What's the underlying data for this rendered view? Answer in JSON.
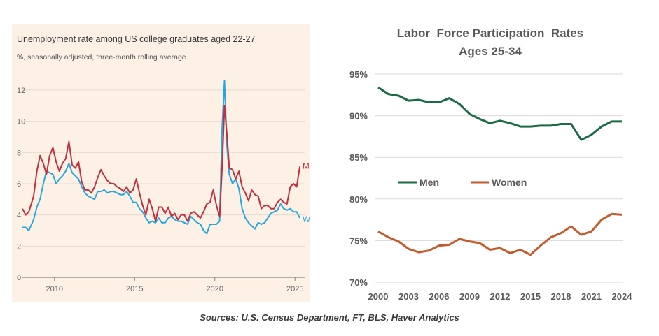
{
  "source": "Sources: U.S. Census Department, FT, BLS, Haver Analytics",
  "chart_data": [
    {
      "type": "line",
      "title": "Unemployment rate among US college graduates aged 22-27",
      "subtitle": "%, seasonally adjusted, three-month rolling average",
      "xlabel": "",
      "ylabel": "",
      "xlim": [
        2008.0,
        2025.6
      ],
      "ylim": [
        0,
        12.8
      ],
      "yticks": [
        0,
        2,
        4,
        6,
        8,
        10,
        12
      ],
      "xticks": [
        2010,
        2015,
        2020,
        2025
      ],
      "grid": true,
      "series": [
        {
          "name": "Men",
          "color": "#c0303f",
          "x": [
            2008.0,
            2008.2,
            2008.4,
            2008.7,
            2008.9,
            2009.1,
            2009.3,
            2009.5,
            2009.7,
            2009.9,
            2010.1,
            2010.3,
            2010.5,
            2010.7,
            2010.9,
            2011.1,
            2011.3,
            2011.5,
            2011.7,
            2011.9,
            2012.1,
            2012.3,
            2012.5,
            2012.7,
            2012.9,
            2013.1,
            2013.3,
            2013.5,
            2013.7,
            2013.9,
            2014.1,
            2014.3,
            2014.5,
            2014.7,
            2014.9,
            2015.1,
            2015.3,
            2015.5,
            2015.7,
            2015.9,
            2016.1,
            2016.3,
            2016.5,
            2016.7,
            2016.9,
            2017.1,
            2017.3,
            2017.5,
            2017.7,
            2017.9,
            2018.1,
            2018.3,
            2018.5,
            2018.7,
            2018.9,
            2019.1,
            2019.3,
            2019.5,
            2019.7,
            2019.9,
            2020.1,
            2020.3,
            2020.45,
            2020.6,
            2020.75,
            2020.9,
            2021.1,
            2021.3,
            2021.5,
            2021.7,
            2021.9,
            2022.1,
            2022.3,
            2022.5,
            2022.7,
            2022.9,
            2023.1,
            2023.3,
            2023.5,
            2023.7,
            2023.9,
            2024.1,
            2024.3,
            2024.5,
            2024.7,
            2024.9,
            2025.1,
            2025.3
          ],
          "values": [
            4.4,
            4.0,
            4.2,
            5.2,
            6.8,
            7.8,
            7.3,
            6.6,
            7.8,
            8.3,
            7.4,
            6.8,
            7.3,
            7.6,
            8.7,
            7.2,
            7.0,
            7.4,
            6.1,
            5.6,
            5.6,
            5.4,
            5.8,
            6.4,
            6.9,
            6.5,
            6.2,
            6.0,
            6.0,
            5.8,
            5.7,
            5.5,
            5.8,
            5.4,
            5.6,
            6.3,
            5.4,
            4.6,
            4.0,
            5.0,
            4.4,
            3.6,
            4.5,
            4.5,
            4.1,
            4.5,
            3.9,
            4.1,
            3.7,
            4.0,
            4.0,
            3.6,
            4.1,
            4.2,
            4.0,
            3.8,
            4.2,
            4.7,
            4.8,
            5.6,
            4.6,
            3.9,
            7.0,
            11.0,
            9.2,
            7.0,
            6.9,
            6.3,
            6.8,
            5.8,
            5.4,
            4.9,
            5.6,
            5.3,
            5.2,
            4.4,
            4.6,
            4.6,
            4.4,
            4.4,
            4.8,
            5.0,
            4.8,
            4.7,
            5.8,
            6.0,
            5.8,
            7.1
          ]
        },
        {
          "name": "Women",
          "color": "#27a7e0",
          "x": [
            2008.0,
            2008.2,
            2008.4,
            2008.7,
            2008.9,
            2009.1,
            2009.3,
            2009.5,
            2009.7,
            2009.9,
            2010.1,
            2010.3,
            2010.5,
            2010.7,
            2010.9,
            2011.1,
            2011.3,
            2011.5,
            2011.7,
            2011.9,
            2012.1,
            2012.3,
            2012.5,
            2012.7,
            2012.9,
            2013.1,
            2013.3,
            2013.5,
            2013.7,
            2013.9,
            2014.1,
            2014.3,
            2014.5,
            2014.7,
            2014.9,
            2015.1,
            2015.3,
            2015.5,
            2015.7,
            2015.9,
            2016.1,
            2016.3,
            2016.5,
            2016.7,
            2016.9,
            2017.1,
            2017.3,
            2017.5,
            2017.7,
            2017.9,
            2018.1,
            2018.3,
            2018.5,
            2018.7,
            2018.9,
            2019.1,
            2019.3,
            2019.5,
            2019.7,
            2019.9,
            2020.1,
            2020.3,
            2020.45,
            2020.6,
            2020.75,
            2020.9,
            2021.1,
            2021.3,
            2021.5,
            2021.7,
            2021.9,
            2022.1,
            2022.3,
            2022.5,
            2022.7,
            2022.9,
            2023.1,
            2023.3,
            2023.5,
            2023.7,
            2023.9,
            2024.1,
            2024.3,
            2024.5,
            2024.7,
            2024.9,
            2025.1,
            2025.3
          ],
          "values": [
            3.2,
            3.2,
            3.0,
            3.7,
            4.5,
            5.0,
            6.0,
            6.8,
            6.7,
            6.6,
            6.0,
            6.3,
            6.5,
            6.8,
            7.3,
            6.7,
            6.5,
            6.3,
            5.8,
            5.4,
            5.2,
            5.1,
            5.0,
            5.5,
            5.5,
            5.6,
            5.4,
            5.5,
            5.5,
            5.4,
            5.3,
            5.3,
            5.5,
            5.2,
            4.8,
            4.8,
            4.4,
            4.2,
            3.8,
            3.5,
            3.6,
            3.5,
            3.8,
            3.5,
            3.5,
            3.8,
            3.9,
            3.7,
            3.6,
            3.6,
            3.5,
            3.4,
            3.9,
            3.7,
            3.5,
            3.4,
            3.0,
            2.8,
            3.4,
            3.4,
            3.4,
            3.6,
            9.5,
            12.6,
            8.5,
            6.6,
            6.0,
            6.3,
            5.7,
            4.4,
            3.8,
            3.5,
            3.3,
            3.1,
            3.5,
            3.4,
            3.5,
            3.8,
            4.1,
            4.2,
            4.3,
            4.7,
            4.4,
            4.3,
            4.4,
            4.2,
            4.2,
            3.8
          ]
        }
      ]
    },
    {
      "type": "line",
      "title": "Labor  Force Participation  Rates",
      "subtitle": "Ages 25-34",
      "xlabel": "",
      "ylabel": "",
      "xlim": [
        2000,
        2024
      ],
      "ylim": [
        70,
        95
      ],
      "yticks": [
        70,
        75,
        80,
        85,
        90,
        95
      ],
      "ytick_labels": [
        "70%",
        "75%",
        "80%",
        "85%",
        "90%",
        "95%"
      ],
      "xticks": [
        2000,
        2003,
        2006,
        2009,
        2012,
        2015,
        2018,
        2021,
        2024
      ],
      "grid": true,
      "legend": "left-middle",
      "series": [
        {
          "name": "Men",
          "color": "#1b6b45",
          "x": [
            2000,
            2001,
            2002,
            2003,
            2004,
            2005,
            2006,
            2007,
            2008,
            2009,
            2010,
            2011,
            2012,
            2013,
            2014,
            2015,
            2016,
            2017,
            2018,
            2019,
            2020,
            2021,
            2022,
            2023,
            2024
          ],
          "values": [
            93.4,
            92.6,
            92.4,
            91.8,
            91.9,
            91.6,
            91.6,
            92.1,
            91.4,
            90.2,
            89.6,
            89.1,
            89.4,
            89.1,
            88.7,
            88.7,
            88.8,
            88.8,
            89.0,
            89.0,
            87.1,
            87.7,
            88.7,
            89.3,
            89.3
          ]
        },
        {
          "name": "Women",
          "color": "#c55a2a",
          "x": [
            2000,
            2001,
            2002,
            2003,
            2004,
            2005,
            2006,
            2007,
            2008,
            2009,
            2010,
            2011,
            2012,
            2013,
            2014,
            2015,
            2016,
            2017,
            2018,
            2019,
            2020,
            2021,
            2022,
            2023,
            2024
          ],
          "values": [
            76.1,
            75.4,
            74.9,
            74.0,
            73.6,
            73.8,
            74.4,
            74.5,
            75.2,
            74.9,
            74.7,
            73.9,
            74.1,
            73.5,
            73.9,
            73.3,
            74.4,
            75.4,
            75.9,
            76.7,
            75.7,
            76.1,
            77.5,
            78.2,
            78.1
          ]
        }
      ]
    }
  ]
}
